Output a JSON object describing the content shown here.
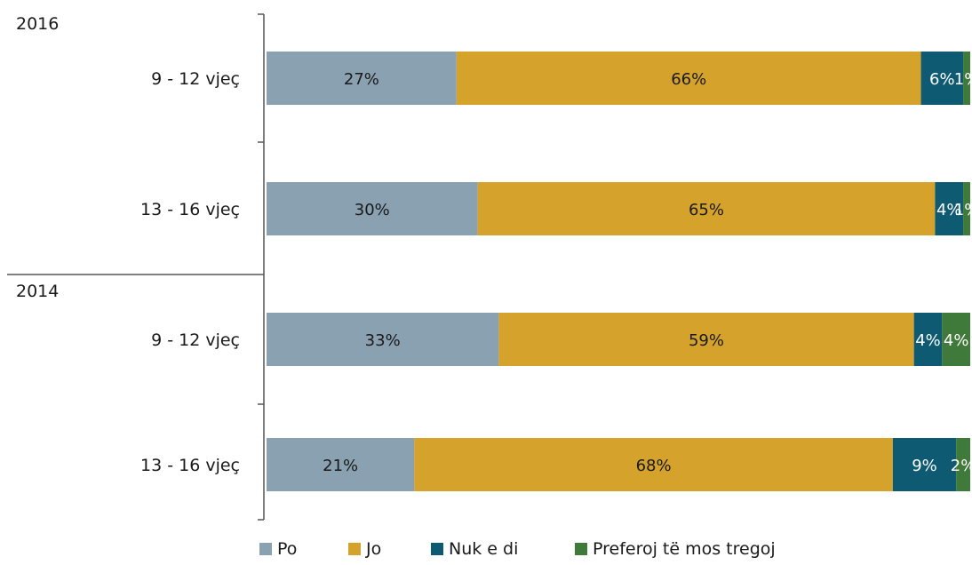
{
  "chart_data": {
    "type": "bar",
    "orientation": "horizontal",
    "stacked": true,
    "percent": true,
    "groups": [
      {
        "label": "2016",
        "categories": [
          "9 - 12 vjeç",
          "13 - 16 vjeç"
        ]
      },
      {
        "label": "2014",
        "categories": [
          "9 - 12 vjeç",
          "13 - 16 vjeç"
        ]
      }
    ],
    "rows": [
      {
        "group": "2016",
        "category": "9 - 12 vjeç",
        "values": [
          27,
          66,
          6,
          1
        ],
        "labels": [
          "27%",
          "66%",
          "6%",
          "1%"
        ]
      },
      {
        "group": "2016",
        "category": "13 - 16 vjeç",
        "values": [
          30,
          65,
          4,
          1
        ],
        "labels": [
          "30%",
          "65%",
          "4%",
          "1%"
        ]
      },
      {
        "group": "2014",
        "category": "9 - 12 vjeç",
        "values": [
          33,
          59,
          4,
          4
        ],
        "labels": [
          "33%",
          "59%",
          "4%",
          "4%"
        ]
      },
      {
        "group": "2014",
        "category": "13 - 16 vjeç",
        "values": [
          21,
          68,
          9,
          2
        ],
        "labels": [
          "21%",
          "68%",
          "9%",
          "2%"
        ]
      }
    ],
    "series": [
      {
        "name": "Po",
        "color": "#8aa1b1",
        "label_color": "#1a1a1a"
      },
      {
        "name": "Jo",
        "color": "#d5a22b",
        "label_color": "#1a1a1a"
      },
      {
        "name": "Nuk e di",
        "color": "#0e5a73",
        "label_color": "#ffffff"
      },
      {
        "name": "Preferoj të mos tregoj",
        "color": "#3f7a3a",
        "label_color": "#ffffff"
      }
    ],
    "legend_position": "bottom",
    "grid": false,
    "xlim": [
      0,
      100
    ]
  }
}
